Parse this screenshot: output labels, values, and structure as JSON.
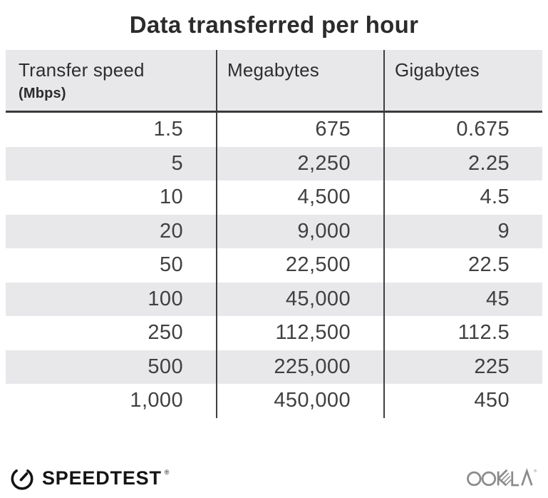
{
  "title": "Data transferred per hour",
  "table": {
    "columns": [
      {
        "label": "Transfer speed",
        "sublabel": "(Mbps)"
      },
      {
        "label": "Megabytes"
      },
      {
        "label": "Gigabytes"
      }
    ],
    "rows": [
      [
        "1.5",
        "675",
        "0.675"
      ],
      [
        "5",
        "2,250",
        "2.25"
      ],
      [
        "10",
        "4,500",
        "4.5"
      ],
      [
        "20",
        "9,000",
        "9"
      ],
      [
        "50",
        "22,500",
        "22.5"
      ],
      [
        "100",
        "45,000",
        "45"
      ],
      [
        "250",
        "112,500",
        "112.5"
      ],
      [
        "500",
        "225,000",
        "225"
      ],
      [
        "1,000",
        "450,000",
        "450"
      ]
    ]
  },
  "chart_data": {
    "type": "table",
    "title": "Data transferred per hour",
    "columns": [
      "Transfer speed (Mbps)",
      "Megabytes",
      "Gigabytes"
    ],
    "rows": [
      [
        1.5,
        675,
        0.675
      ],
      [
        5,
        2250,
        2.25
      ],
      [
        10,
        4500,
        4.5
      ],
      [
        20,
        9000,
        9
      ],
      [
        50,
        22500,
        22.5
      ],
      [
        100,
        45000,
        45
      ],
      [
        250,
        112500,
        112.5
      ],
      [
        500,
        225000,
        225
      ],
      [
        1000,
        450000,
        450
      ]
    ]
  },
  "footer": {
    "brand": "SPEEDTEST",
    "brand_mark": "®",
    "company": "OOKLA",
    "company_mark": "®"
  },
  "icons": {
    "brand_icon": "speedtest-gauge-icon",
    "company_icon": "ookla-wordmark"
  },
  "colors": {
    "header_bg": "#e8e7ea",
    "row_alt_bg": "#e8e7ea",
    "divider": "#3f3f3f",
    "title_text": "#2b2b2b",
    "body_text": "#404040",
    "brand_black": "#141414",
    "ookla_gray": "#8b8b8b"
  }
}
